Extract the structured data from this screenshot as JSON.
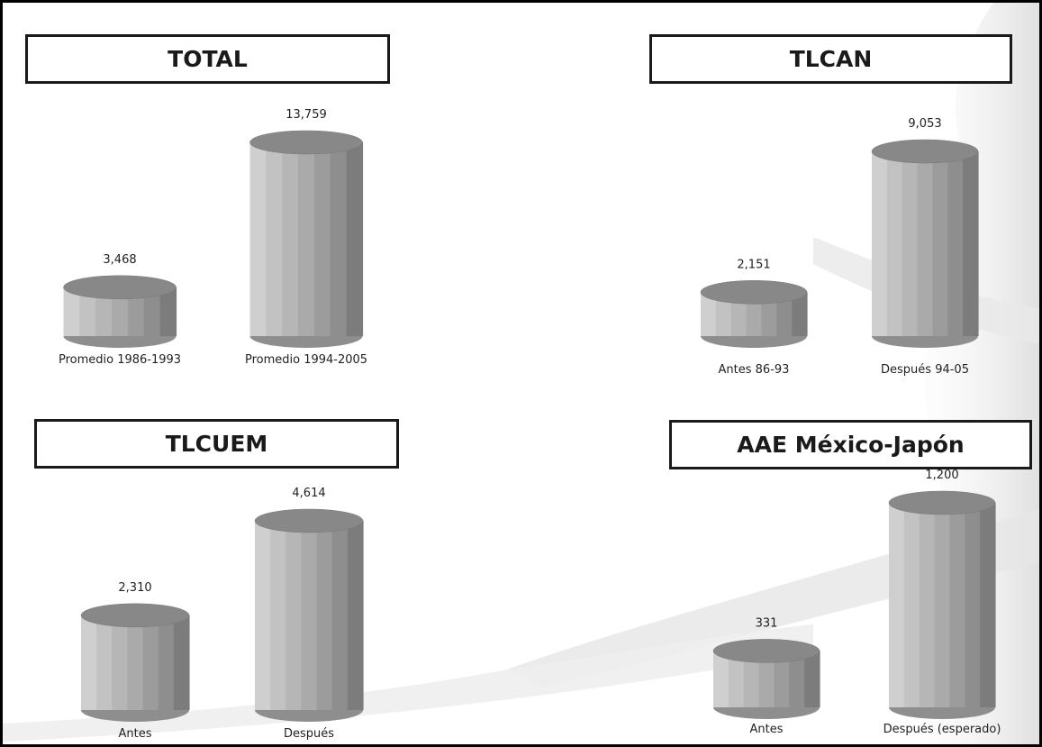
{
  "chart_data": [
    {
      "type": "bar",
      "title": "TOTAL",
      "categories": [
        "Promedio 1986-1993",
        "Promedio 1994-2005"
      ],
      "values": [
        3468,
        13759
      ],
      "value_labels": [
        "3,468",
        "13,759"
      ]
    },
    {
      "type": "bar",
      "title": "TLCAN",
      "categories": [
        "Antes 86-93",
        "Después 94-05"
      ],
      "values": [
        2151,
        9053
      ],
      "value_labels": [
        "2,151",
        "9,053"
      ]
    },
    {
      "type": "bar",
      "title": "TLCUEM",
      "categories": [
        "Antes",
        "Después"
      ],
      "values": [
        2310,
        4614
      ],
      "value_labels": [
        "2,310",
        "4,614"
      ]
    },
    {
      "type": "bar",
      "title": "AAE México-Japón",
      "categories": [
        "Antes",
        "Después (esperado)"
      ],
      "values": [
        331,
        1200
      ],
      "value_labels": [
        "331",
        "1,200"
      ]
    }
  ],
  "colors": {
    "bar_light": "#c4c4c4",
    "bar_mid": "#a2a2a2",
    "bar_dark": "#7a7a7a",
    "bar_top": "#888888",
    "text": "#222222"
  }
}
